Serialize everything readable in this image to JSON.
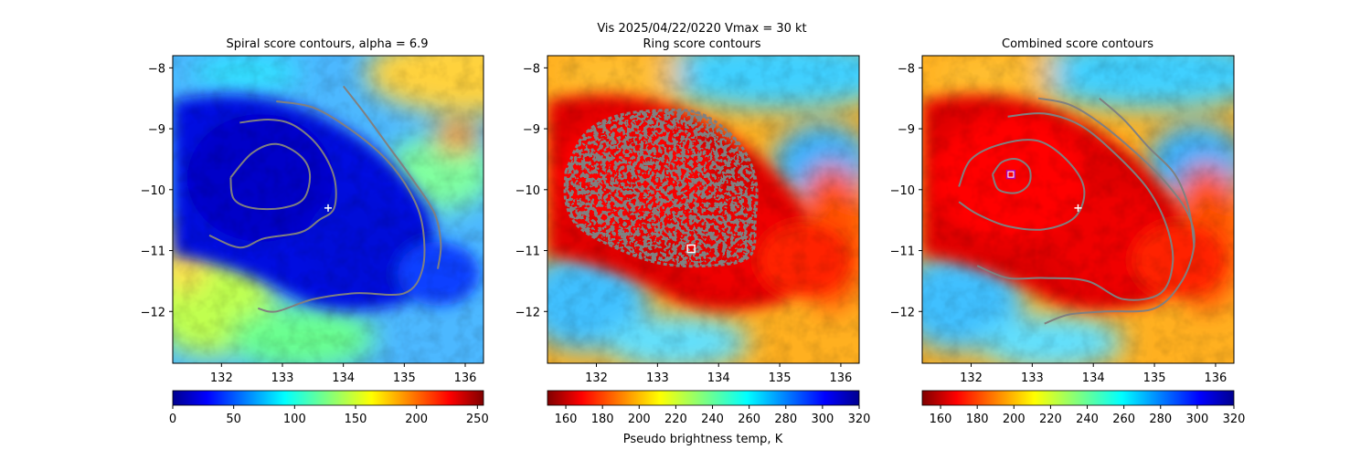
{
  "figure": {
    "suptitle_line": "Vis  2025/04/22/0220    Vmax = 30 kt",
    "colorbar_label": "Pseudo brightness temp, K"
  },
  "colors": {
    "contour": "#808080",
    "marker": "#ffffff",
    "combined_marker": "#b000b0"
  },
  "chart_data": [
    {
      "type": "heatmap",
      "title": "Spiral score contours, alpha =  6.9",
      "colormap": "jet",
      "xlim": [
        131.2,
        136.3
      ],
      "ylim": [
        -12.85,
        -7.8
      ],
      "xticks": [
        "132",
        "133",
        "134",
        "135",
        "136"
      ],
      "yticks": [
        "−8",
        "−9",
        "−10",
        "−11",
        "−12"
      ],
      "colorbar_ticks": [
        "0",
        "50",
        "100",
        "150",
        "200",
        "250"
      ],
      "colorbar_range": [
        0,
        255
      ],
      "colorbar_reversed": false,
      "center_marker": {
        "symbol": "plus",
        "lon": 133.75,
        "lat": -10.3
      },
      "contours": [
        [
          [
            132.15,
            -9.8
          ],
          [
            132.5,
            -9.4
          ],
          [
            132.9,
            -9.25
          ],
          [
            133.3,
            -9.45
          ],
          [
            133.45,
            -9.75
          ],
          [
            133.35,
            -10.15
          ],
          [
            133.0,
            -10.3
          ],
          [
            132.5,
            -10.3
          ],
          [
            132.2,
            -10.15
          ],
          [
            132.15,
            -9.8
          ]
        ],
        [
          [
            132.3,
            -8.9
          ],
          [
            132.8,
            -8.85
          ],
          [
            133.2,
            -8.95
          ],
          [
            133.6,
            -9.3
          ],
          [
            133.85,
            -9.8
          ],
          [
            133.85,
            -10.3
          ],
          [
            133.6,
            -10.5
          ],
          [
            133.3,
            -10.7
          ],
          [
            132.7,
            -10.8
          ],
          [
            132.3,
            -10.95
          ],
          [
            131.8,
            -10.75
          ]
        ],
        [
          [
            132.9,
            -8.55
          ],
          [
            133.5,
            -8.65
          ],
          [
            134.1,
            -9.0
          ],
          [
            134.7,
            -9.5
          ],
          [
            135.1,
            -10.05
          ],
          [
            135.3,
            -10.6
          ],
          [
            135.3,
            -11.3
          ],
          [
            135.0,
            -11.7
          ],
          [
            134.2,
            -11.7
          ],
          [
            133.5,
            -11.8
          ],
          [
            132.9,
            -12.0
          ],
          [
            132.6,
            -11.95
          ]
        ],
        [
          [
            134.0,
            -8.3
          ],
          [
            134.35,
            -8.75
          ],
          [
            134.75,
            -9.3
          ],
          [
            135.15,
            -9.85
          ],
          [
            135.5,
            -10.4
          ],
          [
            135.6,
            -10.9
          ],
          [
            135.55,
            -11.3
          ]
        ]
      ]
    },
    {
      "type": "heatmap",
      "title": "Ring score contours",
      "colormap": "jet_r",
      "xlim": [
        131.2,
        136.3
      ],
      "ylim": [
        -12.85,
        -7.8
      ],
      "xticks": [
        "132",
        "133",
        "134",
        "135",
        "136"
      ],
      "yticks": [
        "−8",
        "−9",
        "−10",
        "−11",
        "−12"
      ],
      "colorbar_ticks": [
        "160",
        "180",
        "200",
        "220",
        "240",
        "260",
        "280",
        "300",
        "320"
      ],
      "colorbar_range": [
        150,
        320
      ],
      "colorbar_reversed": true,
      "center_marker": {
        "symbol": "square",
        "lon": 133.55,
        "lat": -10.97
      },
      "ring_region": [
        [
          131.5,
          -9.7
        ],
        [
          131.8,
          -9.1
        ],
        [
          132.3,
          -8.8
        ],
        [
          133.0,
          -8.7
        ],
        [
          133.7,
          -8.75
        ],
        [
          134.3,
          -9.2
        ],
        [
          134.6,
          -9.8
        ],
        [
          134.6,
          -10.5
        ],
        [
          134.5,
          -11.1
        ],
        [
          133.8,
          -11.25
        ],
        [
          133.0,
          -11.2
        ],
        [
          132.2,
          -10.9
        ],
        [
          131.7,
          -10.6
        ],
        [
          131.5,
          -10.2
        ],
        [
          131.5,
          -9.7
        ]
      ]
    },
    {
      "type": "heatmap",
      "title": "Combined score contours",
      "colormap": "jet_r",
      "xlim": [
        131.2,
        136.3
      ],
      "ylim": [
        -12.85,
        -7.8
      ],
      "xticks": [
        "132",
        "133",
        "134",
        "135",
        "136"
      ],
      "yticks": [
        "−8",
        "−9",
        "−10",
        "−11",
        "−12"
      ],
      "colorbar_ticks": [
        "160",
        "180",
        "200",
        "220",
        "240",
        "260",
        "280",
        "300",
        "320"
      ],
      "colorbar_range": [
        150,
        320
      ],
      "colorbar_reversed": true,
      "center_marker": {
        "symbol": "plus",
        "lon": 133.75,
        "lat": -10.3
      },
      "combined_marker": {
        "symbol": "square",
        "lon": 132.65,
        "lat": -9.75
      },
      "contours": [
        [
          [
            132.35,
            -9.75
          ],
          [
            132.5,
            -9.55
          ],
          [
            132.75,
            -9.5
          ],
          [
            132.95,
            -9.65
          ],
          [
            132.95,
            -9.9
          ],
          [
            132.75,
            -10.05
          ],
          [
            132.45,
            -10.0
          ],
          [
            132.35,
            -9.75
          ]
        ],
        [
          [
            131.8,
            -9.95
          ],
          [
            132.0,
            -9.5
          ],
          [
            132.5,
            -9.25
          ],
          [
            133.1,
            -9.2
          ],
          [
            133.6,
            -9.55
          ],
          [
            133.85,
            -10.0
          ],
          [
            133.7,
            -10.45
          ],
          [
            133.2,
            -10.65
          ],
          [
            132.6,
            -10.6
          ],
          [
            132.1,
            -10.4
          ],
          [
            131.8,
            -10.2
          ]
        ],
        [
          [
            132.6,
            -8.8
          ],
          [
            133.2,
            -8.75
          ],
          [
            133.8,
            -8.95
          ],
          [
            134.4,
            -9.45
          ],
          [
            134.9,
            -10.0
          ],
          [
            135.2,
            -10.6
          ],
          [
            135.3,
            -11.2
          ],
          [
            135.1,
            -11.7
          ],
          [
            134.5,
            -11.8
          ],
          [
            133.9,
            -11.5
          ],
          [
            133.2,
            -11.45
          ],
          [
            132.6,
            -11.45
          ],
          [
            132.1,
            -11.25
          ]
        ],
        [
          [
            133.1,
            -8.5
          ],
          [
            133.6,
            -8.6
          ],
          [
            134.1,
            -8.9
          ],
          [
            134.7,
            -9.4
          ],
          [
            135.2,
            -9.9
          ],
          [
            135.55,
            -10.4
          ],
          [
            135.65,
            -10.9
          ],
          [
            135.45,
            -11.5
          ],
          [
            135.0,
            -11.95
          ],
          [
            134.2,
            -12.0
          ],
          [
            133.6,
            -12.05
          ],
          [
            133.2,
            -12.2
          ]
        ],
        [
          [
            134.1,
            -8.5
          ],
          [
            134.5,
            -8.85
          ],
          [
            134.9,
            -9.3
          ],
          [
            135.3,
            -9.7
          ],
          [
            135.5,
            -10.1
          ],
          [
            135.6,
            -10.5
          ],
          [
            135.65,
            -10.95
          ]
        ]
      ]
    }
  ]
}
